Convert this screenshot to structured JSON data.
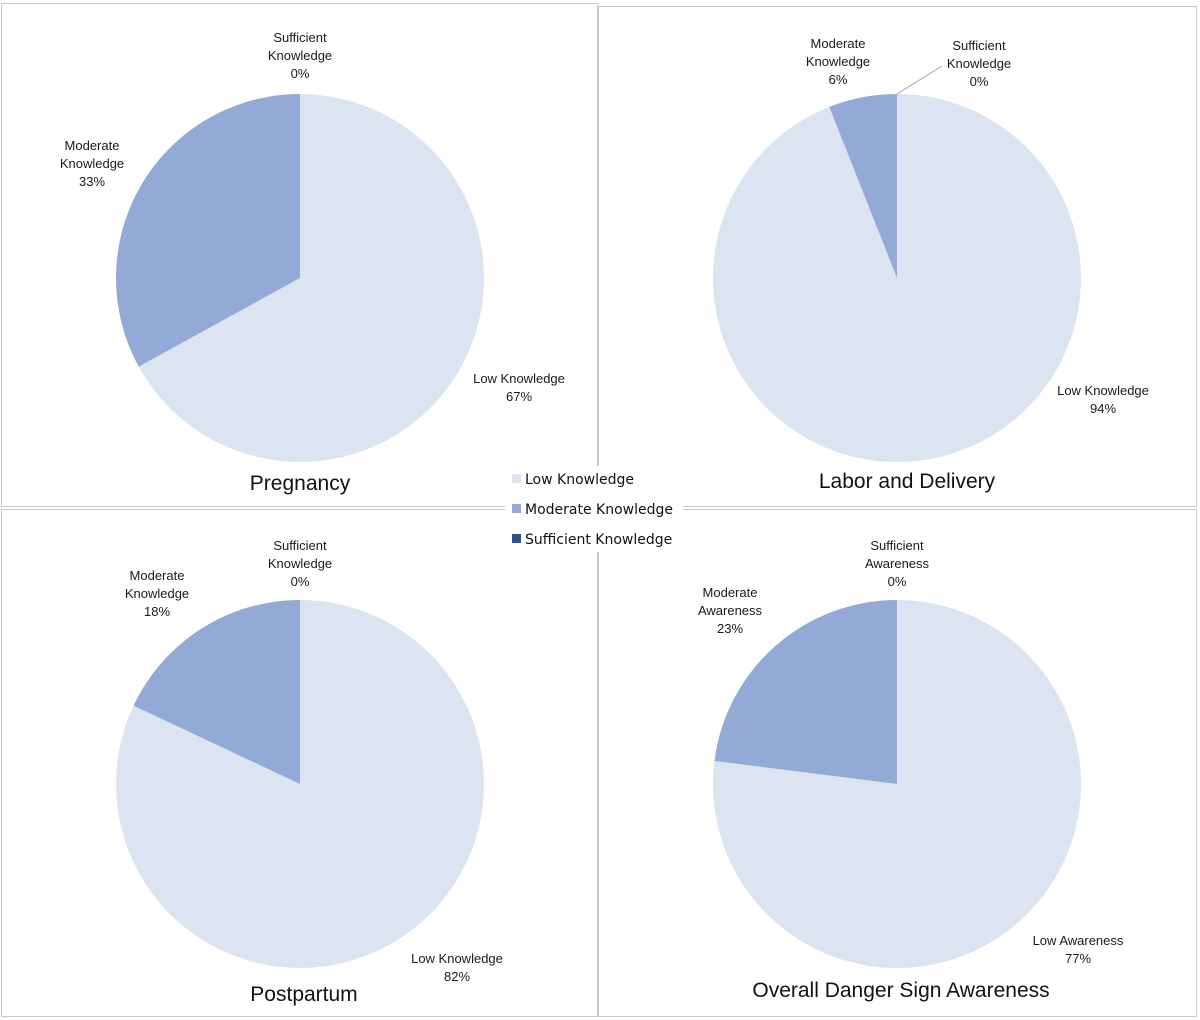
{
  "colors": {
    "low": "#dde4f1",
    "moderate": "#94aad6",
    "sufficient": "#2f4f8f"
  },
  "legend": [
    {
      "label": "Low Knowledge",
      "color_key": "low"
    },
    {
      "label": "Moderate Knowledge",
      "color_key": "moderate"
    },
    {
      "label": "Sufficient Knowledge",
      "color_key": "sufficient"
    }
  ],
  "chart_data": [
    {
      "type": "pie",
      "title": "Pregnancy",
      "slices": [
        {
          "key": "low",
          "label_lines": [
            "Low Knowledge"
          ],
          "value_text": "67%",
          "value": 67
        },
        {
          "key": "moderate",
          "label_lines": [
            "Moderate",
            "Knowledge"
          ],
          "value_text": "33%",
          "value": 33
        },
        {
          "key": "sufficient",
          "label_lines": [
            "Sufficient",
            "Knowledge"
          ],
          "value_text": "0%",
          "value": 0
        }
      ]
    },
    {
      "type": "pie",
      "title": "Labor and Delivery",
      "slices": [
        {
          "key": "low",
          "label_lines": [
            "Low Knowledge"
          ],
          "value_text": "94%",
          "value": 94
        },
        {
          "key": "moderate",
          "label_lines": [
            "Moderate",
            "Knowledge"
          ],
          "value_text": "6%",
          "value": 6
        },
        {
          "key": "sufficient",
          "label_lines": [
            "Sufficient",
            "Knowledge"
          ],
          "value_text": "0%",
          "value": 0
        }
      ]
    },
    {
      "type": "pie",
      "title": "Postpartum",
      "slices": [
        {
          "key": "low",
          "label_lines": [
            "Low Knowledge"
          ],
          "value_text": "82%",
          "value": 82
        },
        {
          "key": "moderate",
          "label_lines": [
            "Moderate",
            "Knowledge"
          ],
          "value_text": "18%",
          "value": 18
        },
        {
          "key": "sufficient",
          "label_lines": [
            "Sufficient",
            "Knowledge"
          ],
          "value_text": "0%",
          "value": 0
        }
      ]
    },
    {
      "type": "pie",
      "title": "Overall Danger Sign Awareness",
      "slices": [
        {
          "key": "low",
          "label_lines": [
            "Low Awareness"
          ],
          "value_text": "77%",
          "value": 77
        },
        {
          "key": "moderate",
          "label_lines": [
            "Moderate",
            "Awareness"
          ],
          "value_text": "23%",
          "value": 23
        },
        {
          "key": "sufficient",
          "label_lines": [
            "Sufficient",
            "Awareness"
          ],
          "value_text": "0%",
          "value": 0
        }
      ]
    }
  ]
}
